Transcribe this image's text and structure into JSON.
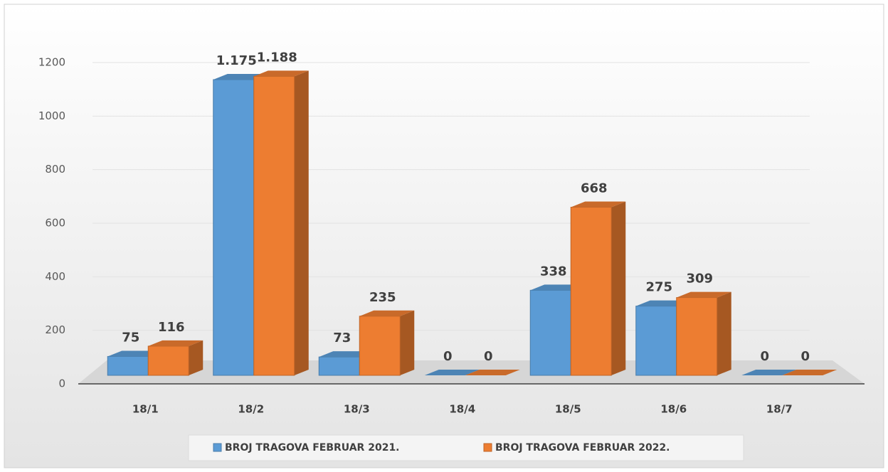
{
  "chart_data": {
    "type": "bar3d",
    "categories": [
      "18/1",
      "18/2",
      "18/3",
      "18/4",
      "18/5",
      "18/6",
      "18/7"
    ],
    "series": [
      {
        "name": "BROJ TRAGOVA FEBRUAR 2021.",
        "color": "#5b9bd5",
        "values": [
          75,
          1175,
          73,
          0,
          338,
          275,
          0
        ],
        "value_labels": [
          "75",
          "1.175",
          "73",
          "0",
          "338",
          "275",
          "0"
        ]
      },
      {
        "name": "BROJ TRAGOVA FEBRUAR 2022.",
        "color": "#ed7d31",
        "values": [
          116,
          1188,
          235,
          0,
          668,
          309,
          0
        ],
        "value_labels": [
          "116",
          "1.188",
          "235",
          "0",
          "668",
          "309",
          "0"
        ]
      }
    ],
    "ylim": [
      0,
      1200
    ],
    "yticks": [
      0,
      200,
      400,
      600,
      800,
      1000,
      1200
    ],
    "grid": true,
    "legend": "bottom"
  }
}
